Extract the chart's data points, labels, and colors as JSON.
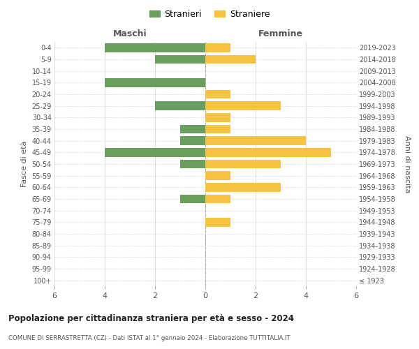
{
  "age_groups": [
    "100+",
    "95-99",
    "90-94",
    "85-89",
    "80-84",
    "75-79",
    "70-74",
    "65-69",
    "60-64",
    "55-59",
    "50-54",
    "45-49",
    "40-44",
    "35-39",
    "30-34",
    "25-29",
    "20-24",
    "15-19",
    "10-14",
    "5-9",
    "0-4"
  ],
  "birth_years": [
    "≤ 1923",
    "1924-1928",
    "1929-1933",
    "1934-1938",
    "1939-1943",
    "1944-1948",
    "1949-1953",
    "1954-1958",
    "1959-1963",
    "1964-1968",
    "1969-1973",
    "1974-1978",
    "1979-1983",
    "1984-1988",
    "1989-1993",
    "1994-1998",
    "1999-2003",
    "2004-2008",
    "2009-2013",
    "2014-2018",
    "2019-2023"
  ],
  "males": [
    0,
    0,
    0,
    0,
    0,
    0,
    0,
    1,
    0,
    0,
    1,
    4,
    1,
    1,
    0,
    2,
    0,
    4,
    0,
    2,
    4
  ],
  "females": [
    0,
    0,
    0,
    0,
    0,
    1,
    0,
    1,
    3,
    1,
    3,
    5,
    4,
    1,
    1,
    3,
    1,
    0,
    0,
    2,
    1
  ],
  "male_color": "#6a9e5f",
  "female_color": "#f5c242",
  "xlim": 6,
  "title": "Popolazione per cittadinanza straniera per età e sesso - 2024",
  "subtitle": "COMUNE DI SERRASTRETTA (CZ) - Dati ISTAT al 1° gennaio 2024 - Elaborazione TUTTITALIA.IT",
  "legend_male": "Stranieri",
  "legend_female": "Straniere",
  "xlabel_left": "Maschi",
  "xlabel_right": "Femmine",
  "ylabel_left": "Fasce di età",
  "ylabel_right": "Anni di nascita",
  "bg_color": "#ffffff",
  "grid_color": "#d0d0d0",
  "bar_height": 0.75
}
